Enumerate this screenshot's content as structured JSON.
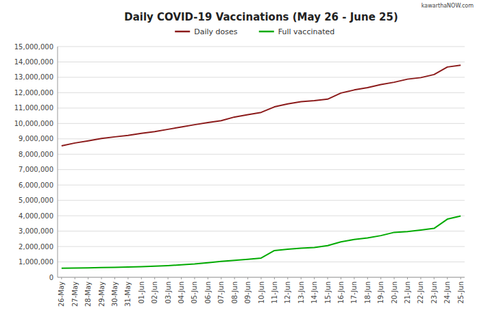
{
  "chart_data": {
    "type": "line",
    "title": "Daily COVID-19 Vaccinations (May 26 - June 25)",
    "annotations": [
      "kawarthaNOW.com"
    ],
    "categories": [
      "26-May",
      "27-May",
      "28-May",
      "29-May",
      "30-May",
      "31-May",
      "01-Jun",
      "02-Jun",
      "03-Jun",
      "04-Jun",
      "05-Jun",
      "06-Jun",
      "07-Jun",
      "08-Jun",
      "09-Jun",
      "10-Jun",
      "11-Jun",
      "12-Jun",
      "13-Jun",
      "14-Jun",
      "15-Jun",
      "16-Jun",
      "17-Jun",
      "18-Jun",
      "19-Jun",
      "20-Jun",
      "21-Jun",
      "22-Jun",
      "23-Jun",
      "24-Jun",
      "25-Jun"
    ],
    "series": [
      {
        "name": "Daily doses",
        "color": "#8B1A1A",
        "values": [
          8550000,
          8730000,
          8870000,
          9020000,
          9130000,
          9220000,
          9360000,
          9470000,
          9620000,
          9770000,
          9920000,
          10060000,
          10180000,
          10420000,
          10570000,
          10720000,
          11080000,
          11270000,
          11420000,
          11480000,
          11580000,
          11980000,
          12180000,
          12330000,
          12530000,
          12680000,
          12880000,
          12980000,
          13180000,
          13670000,
          13790000
        ]
      },
      {
        "name": "Full vaccinated",
        "color": "#00AA00",
        "values": [
          590000,
          600000,
          615000,
          630000,
          648000,
          665000,
          695000,
          720000,
          760000,
          810000,
          870000,
          950000,
          1030000,
          1100000,
          1170000,
          1250000,
          1740000,
          1830000,
          1890000,
          1940000,
          2060000,
          2300000,
          2460000,
          2560000,
          2710000,
          2920000,
          2970000,
          3070000,
          3180000,
          3780000,
          3980000
        ]
      }
    ],
    "ylim": [
      0,
      15000000
    ],
    "yticks": [
      0,
      {
        "value": 1000000,
        "label": "1,000,000"
      },
      {
        "value": 2000000,
        "label": "2,000,000"
      },
      {
        "value": 3000000,
        "label": "3,000,000"
      },
      {
        "value": 4000000,
        "label": "4,000,000"
      },
      {
        "value": 5000000,
        "label": "5,000,000"
      },
      {
        "value": 6000000,
        "label": "6,000,000"
      },
      {
        "value": 7000000,
        "label": "7,000,000"
      },
      {
        "value": 8000000,
        "label": "8,000,000"
      },
      {
        "value": 9000000,
        "label": "9,000,000"
      },
      {
        "value": 10000000,
        "label": "10,000,000"
      },
      {
        "value": 11000000,
        "label": "11,000,000"
      },
      {
        "value": 12000000,
        "label": "12,000,000"
      },
      {
        "value": 13000000,
        "label": "13,000,000"
      },
      {
        "value": 14000000,
        "label": "14,000,000"
      },
      {
        "value": 15000000,
        "label": "15,000,000"
      }
    ],
    "grid": true,
    "legend": "top"
  }
}
